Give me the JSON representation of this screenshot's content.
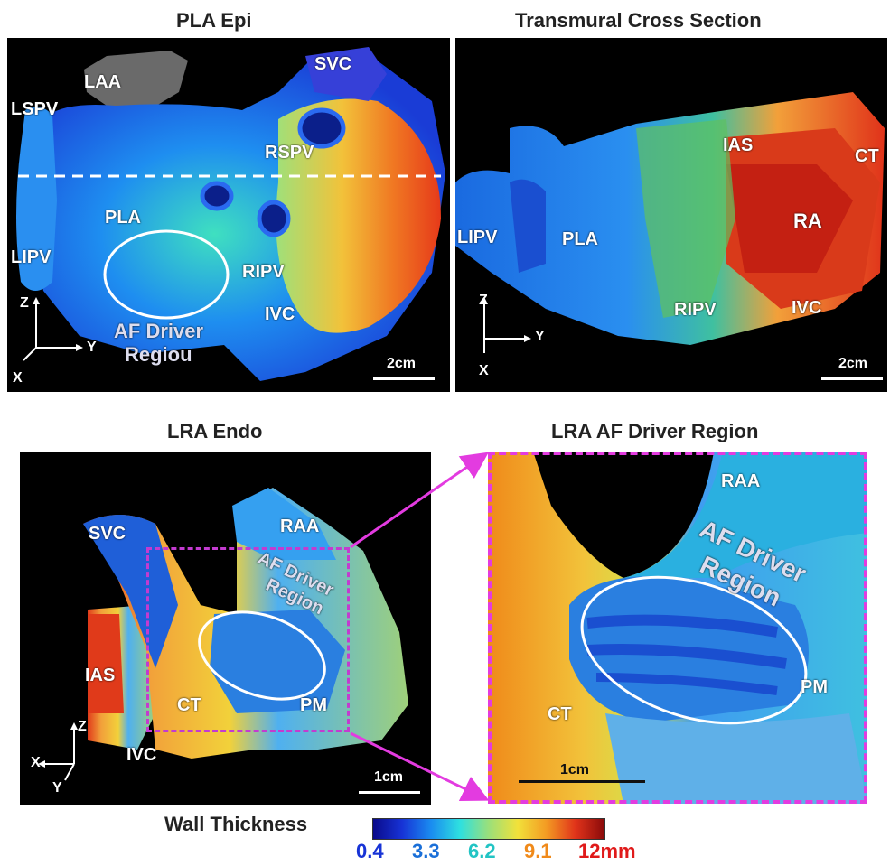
{
  "panels": {
    "pla_epi": {
      "title": "PLA Epi",
      "labels": {
        "laa": "LAA",
        "lspv": "LSPV",
        "svc": "SVC",
        "rspv": "RSPV",
        "pla": "PLA",
        "lipv": "LIPV",
        "ripv": "RIPV",
        "ivc": "IVC",
        "af_driver": "AF Driver",
        "region": "Regiou"
      },
      "axis": {
        "z": "Z",
        "y": "Y",
        "x": "X"
      },
      "scale": "2cm"
    },
    "transmural": {
      "title": "Transmural Cross Section",
      "labels": {
        "ias": "IAS",
        "ct": "CT",
        "ra": "RA",
        "lipv": "LIPV",
        "pla": "PLA",
        "ripv": "RIPV",
        "ivc": "IVC"
      },
      "axis": {
        "z": "Z",
        "y": "Y",
        "x": "X"
      },
      "scale": "2cm"
    },
    "lra_endo": {
      "title": "LRA Endo",
      "labels": {
        "svc": "SVC",
        "raa": "RAA",
        "af_driver": "AF Driver",
        "region": "Region",
        "ias": "IAS",
        "ct": "CT",
        "pm": "PM",
        "ivc": "IVC"
      },
      "axis": {
        "z": "Z",
        "x": "X",
        "y": "Y"
      },
      "scale": "1cm"
    },
    "lra_af_driver": {
      "title": "LRA AF Driver Region",
      "labels": {
        "raa": "RAA",
        "af_driver": "AF Driver",
        "region": "Region",
        "pm": "PM",
        "ct": "CT"
      },
      "scale": "1cm"
    }
  },
  "legend": {
    "title": "Wall Thickness",
    "ticks": [
      "0.4",
      "3.3",
      "6.2",
      "9.1",
      "12mm"
    ],
    "tick_colors": [
      "#1733d6",
      "#1a6fd8",
      "#22c4c4",
      "#f08a1a",
      "#e01a1a"
    ]
  },
  "colors": {
    "inset_outline": "#e33be0"
  }
}
